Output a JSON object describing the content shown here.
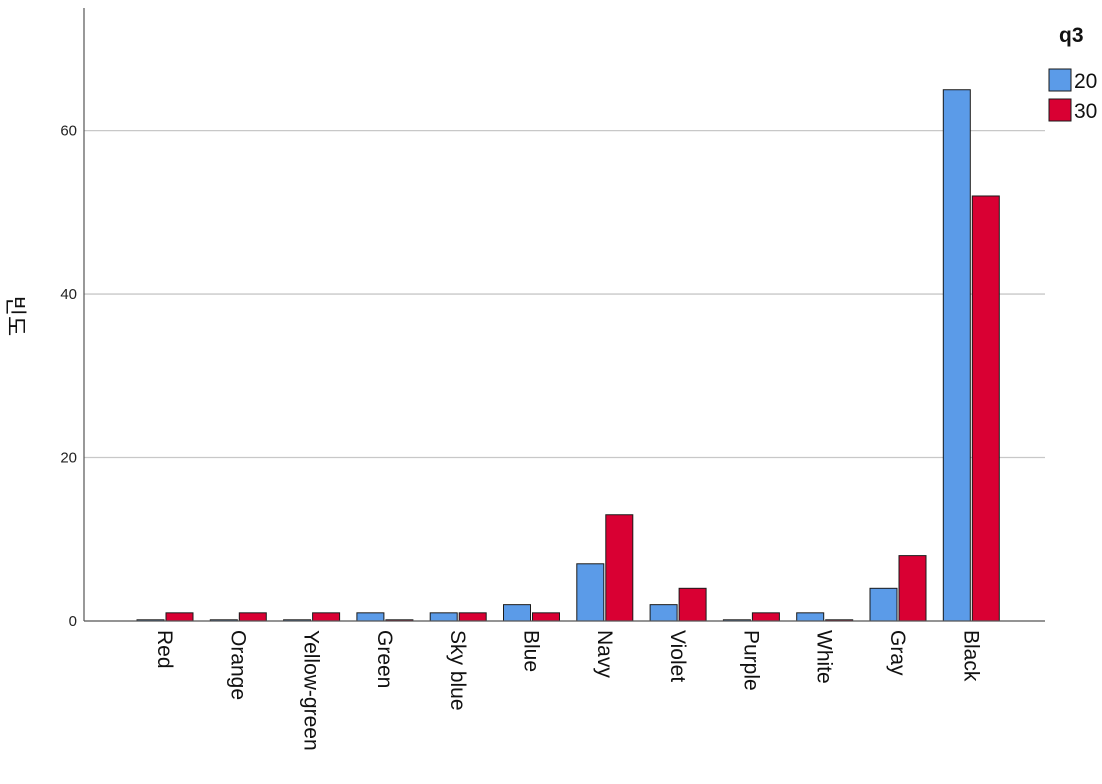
{
  "chart_data": {
    "type": "bar",
    "ylabel": "빈도",
    "categories": [
      "Red",
      "Orange",
      "Yellow-green",
      "Green",
      "Sky blue",
      "Blue",
      "Navy",
      "Violet",
      "Purple",
      "White",
      "Gray",
      "Black"
    ],
    "series": [
      {
        "name": "20",
        "color": "#5b9be8",
        "values": [
          0,
          0,
          0,
          1,
          1,
          2,
          7,
          2,
          0,
          1,
          4,
          65
        ]
      },
      {
        "name": "30",
        "color": "#d90033",
        "values": [
          1,
          1,
          1,
          0,
          1,
          1,
          13,
          4,
          1,
          0,
          8,
          52
        ]
      }
    ],
    "ylim": [
      0,
      75
    ],
    "yticks": [
      0,
      20,
      40,
      60
    ],
    "grid": true,
    "legend": {
      "title": "q3",
      "position": "top-right"
    }
  }
}
